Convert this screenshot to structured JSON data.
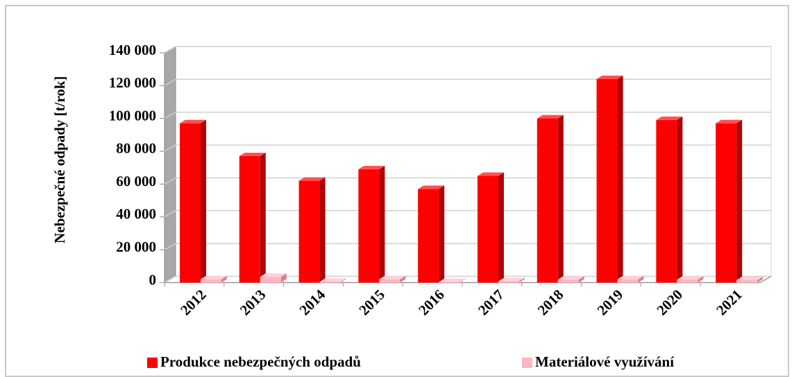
{
  "chart_data": {
    "type": "bar3d",
    "y_label": "Nebezpečné odpady [t/rok]",
    "categories": [
      "2012",
      "2013",
      "2014",
      "2015",
      "2016",
      "2017",
      "2018",
      "2019",
      "2020",
      "2021"
    ],
    "series": [
      {
        "name": "Produkce nebezpečných odpadů",
        "color": "#ff0000",
        "values": [
          97000,
          77000,
          62000,
          69000,
          57000,
          65000,
          100000,
          124000,
          99000,
          97000
        ]
      },
      {
        "name": "Materiálové využívání",
        "color": "#ffb6c1",
        "values": [
          2000,
          3500,
          500,
          2000,
          300,
          800,
          1800,
          2000,
          1800,
          1500
        ]
      }
    ],
    "ylim": [
      0,
      140000
    ],
    "yticks": [
      {
        "value": 0,
        "label": "0"
      },
      {
        "value": 20000,
        "label": "20 000"
      },
      {
        "value": 40000,
        "label": "40 000"
      },
      {
        "value": 60000,
        "label": "60 000"
      },
      {
        "value": 80000,
        "label": "80 000"
      },
      {
        "value": 100000,
        "label": "100 000"
      },
      {
        "value": 120000,
        "label": "120 000"
      },
      {
        "value": 140000,
        "label": "140 000"
      }
    ],
    "grid": true,
    "legend": "bottom"
  }
}
